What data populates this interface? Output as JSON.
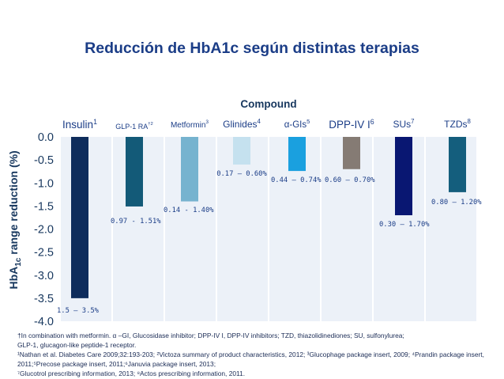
{
  "title": "Reducción de HbA1c según distintas terapias",
  "chart_data": {
    "type": "bar",
    "xlabel": "Compound",
    "ylabel_prefix": "HbA",
    "ylabel_sub": "1c",
    "ylabel_suffix": " range reduction (%)",
    "ylim": [
      -4.0,
      0.0
    ],
    "yticks": [
      "0.0",
      "-0.5",
      "-1.0",
      "-1.5",
      "-2.0",
      "-2.5",
      "-3.0",
      "-3.5",
      "-4.0"
    ],
    "grid": false,
    "categories": [
      {
        "label": "Insulin",
        "sup": "1",
        "value": -3.5,
        "range": "1.5 – 3.5%",
        "color": "#0f2d5c"
      },
      {
        "label": "GLP-1 RA",
        "sup": "†2",
        "value": -1.51,
        "range": "0.97 - 1.51%",
        "color": "#135a78"
      },
      {
        "label": "Metformin",
        "sup": "3",
        "value": -1.4,
        "range": "0.14 - 1.40%",
        "color": "#76b3cf"
      },
      {
        "label": "Glinides",
        "sup": "4",
        "value": -0.6,
        "range": "0.17 – 0.60%",
        "color": "#c5e1ef"
      },
      {
        "label": "α-GIs",
        "sup": "5",
        "value": -0.74,
        "range": "0.44 – 0.74%",
        "color": "#1aa0df"
      },
      {
        "label": "DPP-IV I",
        "sup": "6",
        "value": -0.7,
        "range": "0.60 – 0.70%",
        "color": "#857b74"
      },
      {
        "label": "SUs",
        "sup": "7",
        "value": -1.7,
        "range": "0.30 – 1.70%",
        "color": "#091772"
      },
      {
        "label": "TZDs",
        "sup": "8",
        "value": -1.2,
        "range": "0.80 – 1.20%",
        "color": "#145e7d"
      }
    ]
  },
  "footnotes": [
    "†In combination with metformin. α –GI, Glucosidase inhibitor; DPP-IV I, DPP-IV inhibitors; TZD, thiazolidinediones; SU, sulfonylurea;",
    "GLP-1, glucagon-like peptide-1 receptor.",
    "¹Nathan et al. Diabetes Care 2009;32:193-203; ²Victoza summary of product characteristics, 2012; ³Glucophage package insert, 2009; ⁴Prandin package insert,",
    "2011;⁵Precose package insert, 2011;⁶Januvia package insert, 2013;",
    " ⁷Glucotrol prescribing information, 2013; ⁸Actos prescribing information, 2011."
  ]
}
